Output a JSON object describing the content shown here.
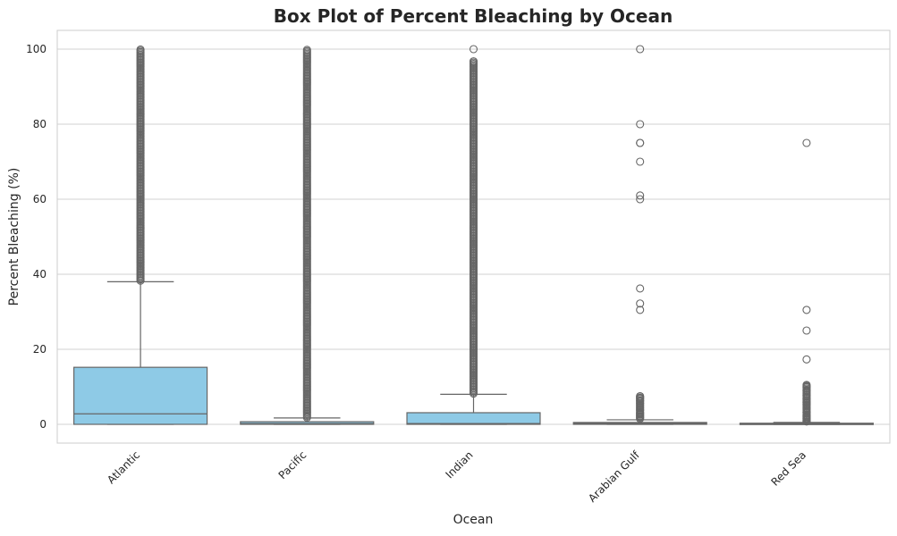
{
  "chart_data": {
    "type": "box",
    "title": "Box Plot of Percent Bleaching by Ocean",
    "xlabel": "Ocean",
    "ylabel": "Percent Bleaching (%)",
    "ylim": [
      -5,
      105
    ],
    "yticks": [
      0,
      20,
      40,
      60,
      80,
      100
    ],
    "grid": true,
    "colors": {
      "box_fill": "#8ecae6",
      "line": "#666666",
      "grid": "#d0d0d0",
      "frame": "#cccccc"
    },
    "categories": [
      "Atlantic",
      "Pacific",
      "Indian",
      "Arabian Gulf",
      "Red Sea"
    ],
    "boxes": [
      {
        "category": "Atlantic",
        "min": 0,
        "q1": 0,
        "median": 2.8,
        "q3": 15.2,
        "whisker_high": 38,
        "outliers": {
          "dense_from": 38.3,
          "dense_to": 100,
          "points": []
        }
      },
      {
        "category": "Pacific",
        "min": 0,
        "q1": 0,
        "median": 0.2,
        "q3": 0.7,
        "whisker_high": 1.7,
        "outliers": {
          "dense_from": 1.8,
          "dense_to": 100,
          "points": []
        }
      },
      {
        "category": "Indian",
        "min": 0,
        "q1": 0,
        "median": 0.2,
        "q3": 3.1,
        "whisker_high": 8,
        "outliers": {
          "dense_from": 8.2,
          "dense_to": 97,
          "points": [
            100
          ]
        }
      },
      {
        "category": "Arabian Gulf",
        "min": 0,
        "q1": 0,
        "median": 0.2,
        "q3": 0.5,
        "whisker_high": 1.2,
        "outliers": {
          "dense_from": 1.5,
          "dense_to": 7.5,
          "points": [
            1.8,
            2.2,
            2.7,
            3.1,
            3.8,
            4.4,
            5,
            5.6,
            6.3,
            7,
            7.5,
            30.5,
            32.2,
            36.2,
            60,
            61,
            70,
            75,
            75,
            80,
            100
          ]
        }
      },
      {
        "category": "Red Sea",
        "min": 0,
        "q1": 0,
        "median": 0.1,
        "q3": 0.3,
        "whisker_high": 0.5,
        "outliers": {
          "dense_from": 0.8,
          "dense_to": 10.5,
          "points": [
            0.8,
            1.2,
            1.6,
            2,
            2.4,
            3.2,
            4.3,
            5.2,
            5.8,
            6.8,
            7.8,
            9,
            10,
            10.5,
            17.3,
            25,
            30.5,
            75
          ]
        }
      }
    ]
  }
}
